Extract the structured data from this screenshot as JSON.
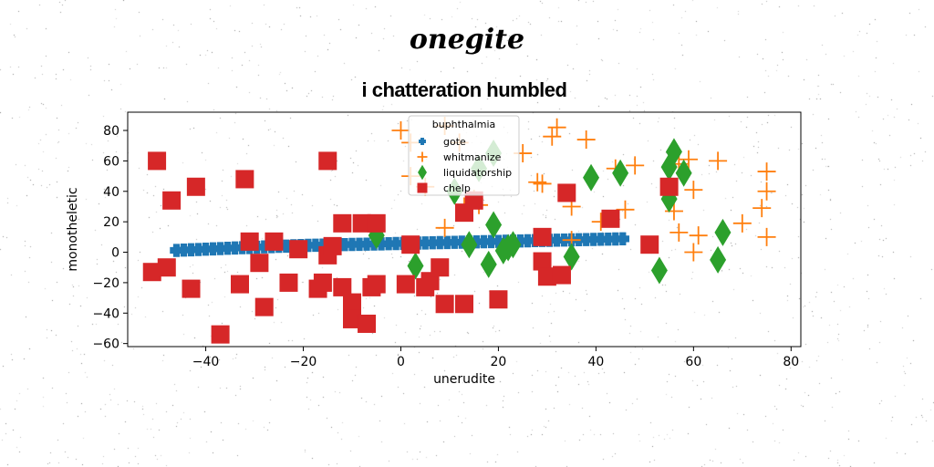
{
  "figure": {
    "suptitle": "onegite"
  },
  "chart_data": {
    "type": "scatter",
    "title": "i chatteration humbled",
    "xlabel": "unerudite",
    "ylabel": "monotheletic",
    "xlim": [
      -56,
      82
    ],
    "ylim": [
      -62,
      92
    ],
    "xticks": [
      -40,
      -20,
      0,
      20,
      40,
      60,
      80
    ],
    "yticks": [
      -60,
      -40,
      -20,
      0,
      20,
      40,
      60,
      80
    ],
    "x_tick_labels": [
      "−40",
      "−20",
      "0",
      "20",
      "40",
      "60",
      "80"
    ],
    "y_tick_labels": [
      "−60",
      "−40",
      "−20",
      "0",
      "20",
      "40",
      "60",
      "80"
    ],
    "grid": false,
    "legend": {
      "title": "buphthalmia",
      "placement": "upper-center"
    },
    "colors": {
      "gote": "#1f77b4",
      "whitmanize": "#ff7f0e",
      "liquidatorship": "#2ca02c",
      "chelp": "#d62728"
    },
    "series": [
      {
        "name": "gote",
        "marker": "x-filled",
        "points": [
          [
            -46,
            1.2
          ],
          [
            -44.5,
            1.4
          ],
          [
            -43,
            1.6
          ],
          [
            -41.5,
            1.8
          ],
          [
            -40,
            2.0
          ],
          [
            -38.5,
            2.2
          ],
          [
            -37,
            2.4
          ],
          [
            -35.5,
            2.6
          ],
          [
            -34,
            2.8
          ],
          [
            -32.5,
            3.0
          ],
          [
            -31,
            3.1
          ],
          [
            -29.5,
            3.3
          ],
          [
            -28,
            3.5
          ],
          [
            -26.5,
            3.7
          ],
          [
            -25,
            3.9
          ],
          [
            -23.5,
            4.0
          ],
          [
            -22,
            4.2
          ],
          [
            -20.5,
            4.4
          ],
          [
            -19,
            4.5
          ],
          [
            -17.5,
            4.6
          ],
          [
            -16,
            4.7
          ],
          [
            -14.5,
            4.8
          ],
          [
            -13,
            4.9
          ],
          [
            -11.5,
            5.0
          ],
          [
            -10,
            5.1
          ],
          [
            -8.5,
            5.2
          ],
          [
            -7,
            5.3
          ],
          [
            -5.5,
            5.4
          ],
          [
            -4,
            5.5
          ],
          [
            -2.5,
            5.6
          ],
          [
            -1,
            5.7
          ],
          [
            0.5,
            5.8
          ],
          [
            2,
            5.9
          ],
          [
            3.5,
            6.0
          ],
          [
            5,
            6.1
          ],
          [
            6.5,
            6.2
          ],
          [
            8,
            6.3
          ],
          [
            9.5,
            6.4
          ],
          [
            11,
            6.5
          ],
          [
            12.5,
            6.6
          ],
          [
            14,
            6.7
          ],
          [
            15.5,
            6.8
          ],
          [
            17,
            6.9
          ],
          [
            18.5,
            7.0
          ],
          [
            20,
            7.1
          ],
          [
            21.5,
            7.2
          ],
          [
            23,
            7.3
          ],
          [
            24.5,
            7.4
          ],
          [
            26,
            7.5
          ],
          [
            27.5,
            7.6
          ],
          [
            29,
            7.7
          ],
          [
            30.5,
            7.8
          ],
          [
            32,
            7.9
          ],
          [
            33.5,
            8.0
          ],
          [
            35,
            8.1
          ],
          [
            36.5,
            8.2
          ],
          [
            38,
            8.3
          ],
          [
            39.5,
            8.4
          ],
          [
            41,
            8.5
          ],
          [
            42.5,
            8.6
          ],
          [
            44,
            8.7
          ],
          [
            45.5,
            8.8
          ]
        ]
      },
      {
        "name": "whitmanize",
        "marker": "plus",
        "points": [
          [
            0,
            80
          ],
          [
            2,
            72
          ],
          [
            9,
            83
          ],
          [
            9,
            16
          ],
          [
            12,
            72
          ],
          [
            13,
            30
          ],
          [
            15,
            35
          ],
          [
            16,
            31
          ],
          [
            25,
            65
          ],
          [
            28,
            46
          ],
          [
            29,
            45
          ],
          [
            31,
            76
          ],
          [
            32,
            82
          ],
          [
            35,
            30
          ],
          [
            35,
            8
          ],
          [
            38,
            74
          ],
          [
            41,
            20
          ],
          [
            44,
            55
          ],
          [
            46,
            28
          ],
          [
            48,
            57
          ],
          [
            56,
            27
          ],
          [
            57,
            13
          ],
          [
            57,
            58
          ],
          [
            59,
            61
          ],
          [
            60,
            0
          ],
          [
            60,
            41
          ],
          [
            61,
            11
          ],
          [
            65,
            60
          ],
          [
            70,
            19
          ],
          [
            74,
            29
          ],
          [
            75,
            53
          ],
          [
            75,
            40
          ],
          [
            75,
            10
          ],
          [
            2,
            50
          ],
          [
            5,
            43
          ]
        ]
      },
      {
        "name": "liquidatorship",
        "marker": "diamond",
        "points": [
          [
            -5,
            11
          ],
          [
            3,
            -9
          ],
          [
            11,
            40
          ],
          [
            14,
            5
          ],
          [
            16,
            55
          ],
          [
            18,
            -8
          ],
          [
            19,
            18
          ],
          [
            19,
            65
          ],
          [
            21,
            1
          ],
          [
            22,
            3
          ],
          [
            23,
            5
          ],
          [
            35,
            -3
          ],
          [
            39,
            49
          ],
          [
            45,
            52
          ],
          [
            53,
            -12
          ],
          [
            55,
            56
          ],
          [
            55,
            35
          ],
          [
            56,
            66
          ],
          [
            58,
            52
          ],
          [
            65,
            -5
          ],
          [
            66,
            13
          ]
        ]
      },
      {
        "name": "chelp",
        "marker": "square",
        "points": [
          [
            -50,
            60
          ],
          [
            -51,
            -13
          ],
          [
            -48,
            -10
          ],
          [
            -47,
            34
          ],
          [
            -43,
            -24
          ],
          [
            -42,
            43
          ],
          [
            -37,
            -54
          ],
          [
            -33,
            -21
          ],
          [
            -32,
            48
          ],
          [
            -31,
            7
          ],
          [
            -29,
            -7
          ],
          [
            -28,
            -36
          ],
          [
            -26,
            7
          ],
          [
            -23,
            -20
          ],
          [
            -21,
            2
          ],
          [
            -17,
            -24
          ],
          [
            -16,
            -20
          ],
          [
            -15,
            60
          ],
          [
            -15,
            -2
          ],
          [
            -14,
            4
          ],
          [
            -12,
            19
          ],
          [
            -12,
            -23
          ],
          [
            -10,
            -33
          ],
          [
            -10,
            -44
          ],
          [
            -8,
            19
          ],
          [
            -7,
            -47
          ],
          [
            -6,
            -23
          ],
          [
            -5,
            -21
          ],
          [
            -5,
            19
          ],
          [
            1,
            -21
          ],
          [
            2,
            5
          ],
          [
            5,
            -23
          ],
          [
            6,
            -19
          ],
          [
            8,
            -10
          ],
          [
            9,
            -34
          ],
          [
            13,
            -34
          ],
          [
            13,
            26
          ],
          [
            15,
            34
          ],
          [
            20,
            -31
          ],
          [
            29,
            10
          ],
          [
            29,
            -6
          ],
          [
            30,
            -16
          ],
          [
            33,
            -15
          ],
          [
            34,
            39
          ],
          [
            43,
            22
          ],
          [
            51,
            5
          ],
          [
            55,
            43
          ]
        ]
      }
    ]
  }
}
